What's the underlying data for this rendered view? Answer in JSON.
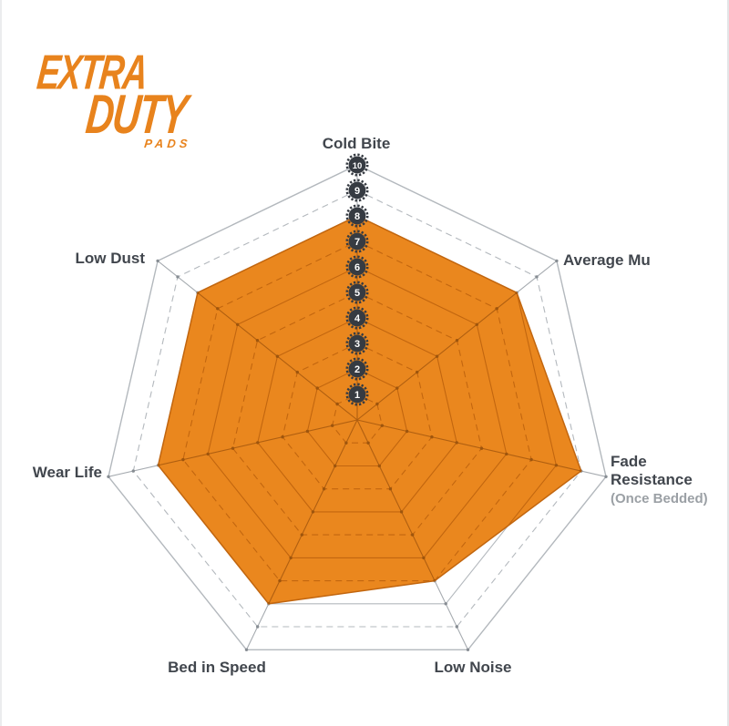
{
  "logo": {
    "line1": "EXTRA",
    "line2": "DUTY",
    "line3": "PADS",
    "color": "#e8831d"
  },
  "chart_data": {
    "type": "radar",
    "title": "",
    "categories": [
      "Cold Bite",
      "Average Mu",
      "Fade Resistance",
      "Low Noise",
      "Bed in Speed",
      "Wear Life",
      "Low Dust"
    ],
    "category_sublabels": [
      "",
      "",
      "(Once Bedded)",
      "",
      "",
      "",
      ""
    ],
    "values": [
      8,
      8,
      9,
      7,
      8,
      8,
      8
    ],
    "scale": {
      "min": 0,
      "max": 10,
      "step": 1,
      "tick_labels": [
        "10",
        "9",
        "8",
        "7",
        "6",
        "5",
        "4",
        "3",
        "2",
        "1"
      ]
    },
    "grid": {
      "rings": 10,
      "odd_rings_dashed": true,
      "spokes": true,
      "legend": "none"
    },
    "colors": {
      "fill": "#ea871e",
      "fill_edge": "#c2660f",
      "grid_ring": "#b3b8bd",
      "grid_spoke": "#a6abb0",
      "grid_dot": "#878d93",
      "grid_ring_on_fill": "#c2660f",
      "grid_spoke_on_fill": "#b05f10",
      "grid_dot_on_fill": "#9e550d",
      "tick_badge": "#363b42",
      "tick_text": "#ffffff",
      "label": "#41464d",
      "sublabel": "#9ba0a5"
    }
  }
}
